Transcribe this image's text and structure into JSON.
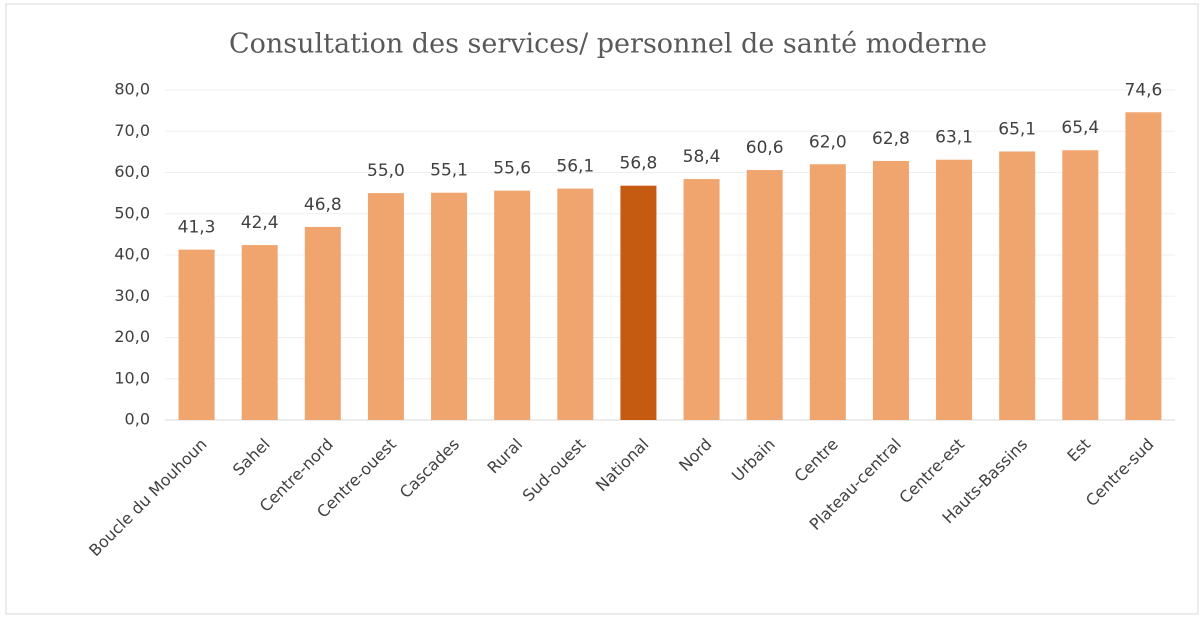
{
  "chart_data": {
    "type": "bar",
    "title": "Consultation des services/ personnel de santé moderne",
    "categories": [
      "Boucle du Mouhoun",
      "Sahel",
      "Centre-nord",
      "Centre-ouest",
      "Cascades",
      "Rural",
      "Sud-ouest",
      "National",
      "Nord",
      "Urbain",
      "Centre",
      "Plateau-central",
      "Centre-est",
      "Hauts-Bassins",
      "Est",
      "Centre-sud"
    ],
    "values": [
      41.3,
      42.4,
      46.8,
      55.0,
      55.1,
      55.6,
      56.1,
      56.8,
      58.4,
      60.6,
      62.0,
      62.8,
      63.1,
      65.1,
      65.4,
      74.6
    ],
    "value_labels": [
      "41,3",
      "42,4",
      "46,8",
      "55,0",
      "55,1",
      "55,6",
      "56,1",
      "56,8",
      "58,4",
      "60,6",
      "62,0",
      "62,8",
      "63,1",
      "65,1",
      "65,4",
      "74,6"
    ],
    "colors": [
      "#f0a46e",
      "#f0a46e",
      "#f0a46e",
      "#f0a46e",
      "#f0a46e",
      "#f0a46e",
      "#f0a46e",
      "#c55a11",
      "#f0a46e",
      "#f0a46e",
      "#f0a46e",
      "#f0a46e",
      "#f0a46e",
      "#f0a46e",
      "#f0a46e",
      "#f0a46e"
    ],
    "ylim": [
      0,
      80
    ],
    "yticks": [
      {
        "value": 0,
        "label": "0,0"
      },
      {
        "value": 10,
        "label": "10,0"
      },
      {
        "value": 20,
        "label": "20,0"
      },
      {
        "value": 30,
        "label": "30,0"
      },
      {
        "value": 40,
        "label": "40,0"
      },
      {
        "value": 50,
        "label": "50,0"
      },
      {
        "value": 60,
        "label": "60,0"
      },
      {
        "value": 70,
        "label": "70,0"
      },
      {
        "value": 80,
        "label": "80,0"
      }
    ],
    "grid": true
  }
}
